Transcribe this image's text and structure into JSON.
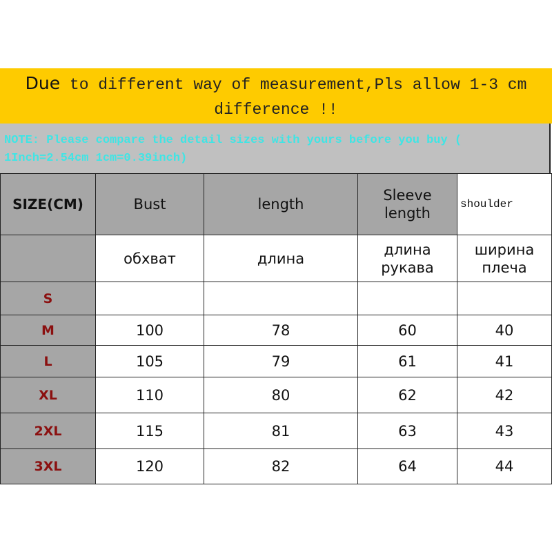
{
  "banner": {
    "first_word": "Due",
    "rest": "to different way of measurement,Pls allow 1-3 cm difference !!"
  },
  "note": {
    "label": "NOTE:",
    "text": "Please compare the detail sizes with yours before you buy ( 1Inch=2.54cm 1cm=0.39inch)"
  },
  "table": {
    "headers": [
      "SIZE(CM)",
      "Bust",
      "length",
      "Sleeve length",
      "shoulder"
    ],
    "russian": [
      "",
      "обхват",
      "длина",
      "длина рукава",
      "ширина плеча"
    ],
    "rows": [
      {
        "size": "S",
        "values": [
          "",
          "",
          "",
          ""
        ]
      },
      {
        "size": "M",
        "values": [
          "100",
          "78",
          "60",
          "40"
        ]
      },
      {
        "size": "L",
        "values": [
          "105",
          "79",
          "61",
          "41"
        ]
      },
      {
        "size": "XL",
        "values": [
          "110",
          "80",
          "62",
          "42"
        ]
      },
      {
        "size": "2XL",
        "values": [
          "115",
          "81",
          "63",
          "43"
        ]
      },
      {
        "size": "3XL",
        "values": [
          "120",
          "82",
          "64",
          "44"
        ]
      }
    ]
  },
  "colors": {
    "banner": "#fecb00",
    "note_bg": "#c0c0c0",
    "note_text": "#3fe5e5",
    "header_bg": "#a6a6a6",
    "size_label": "#8b1010"
  }
}
